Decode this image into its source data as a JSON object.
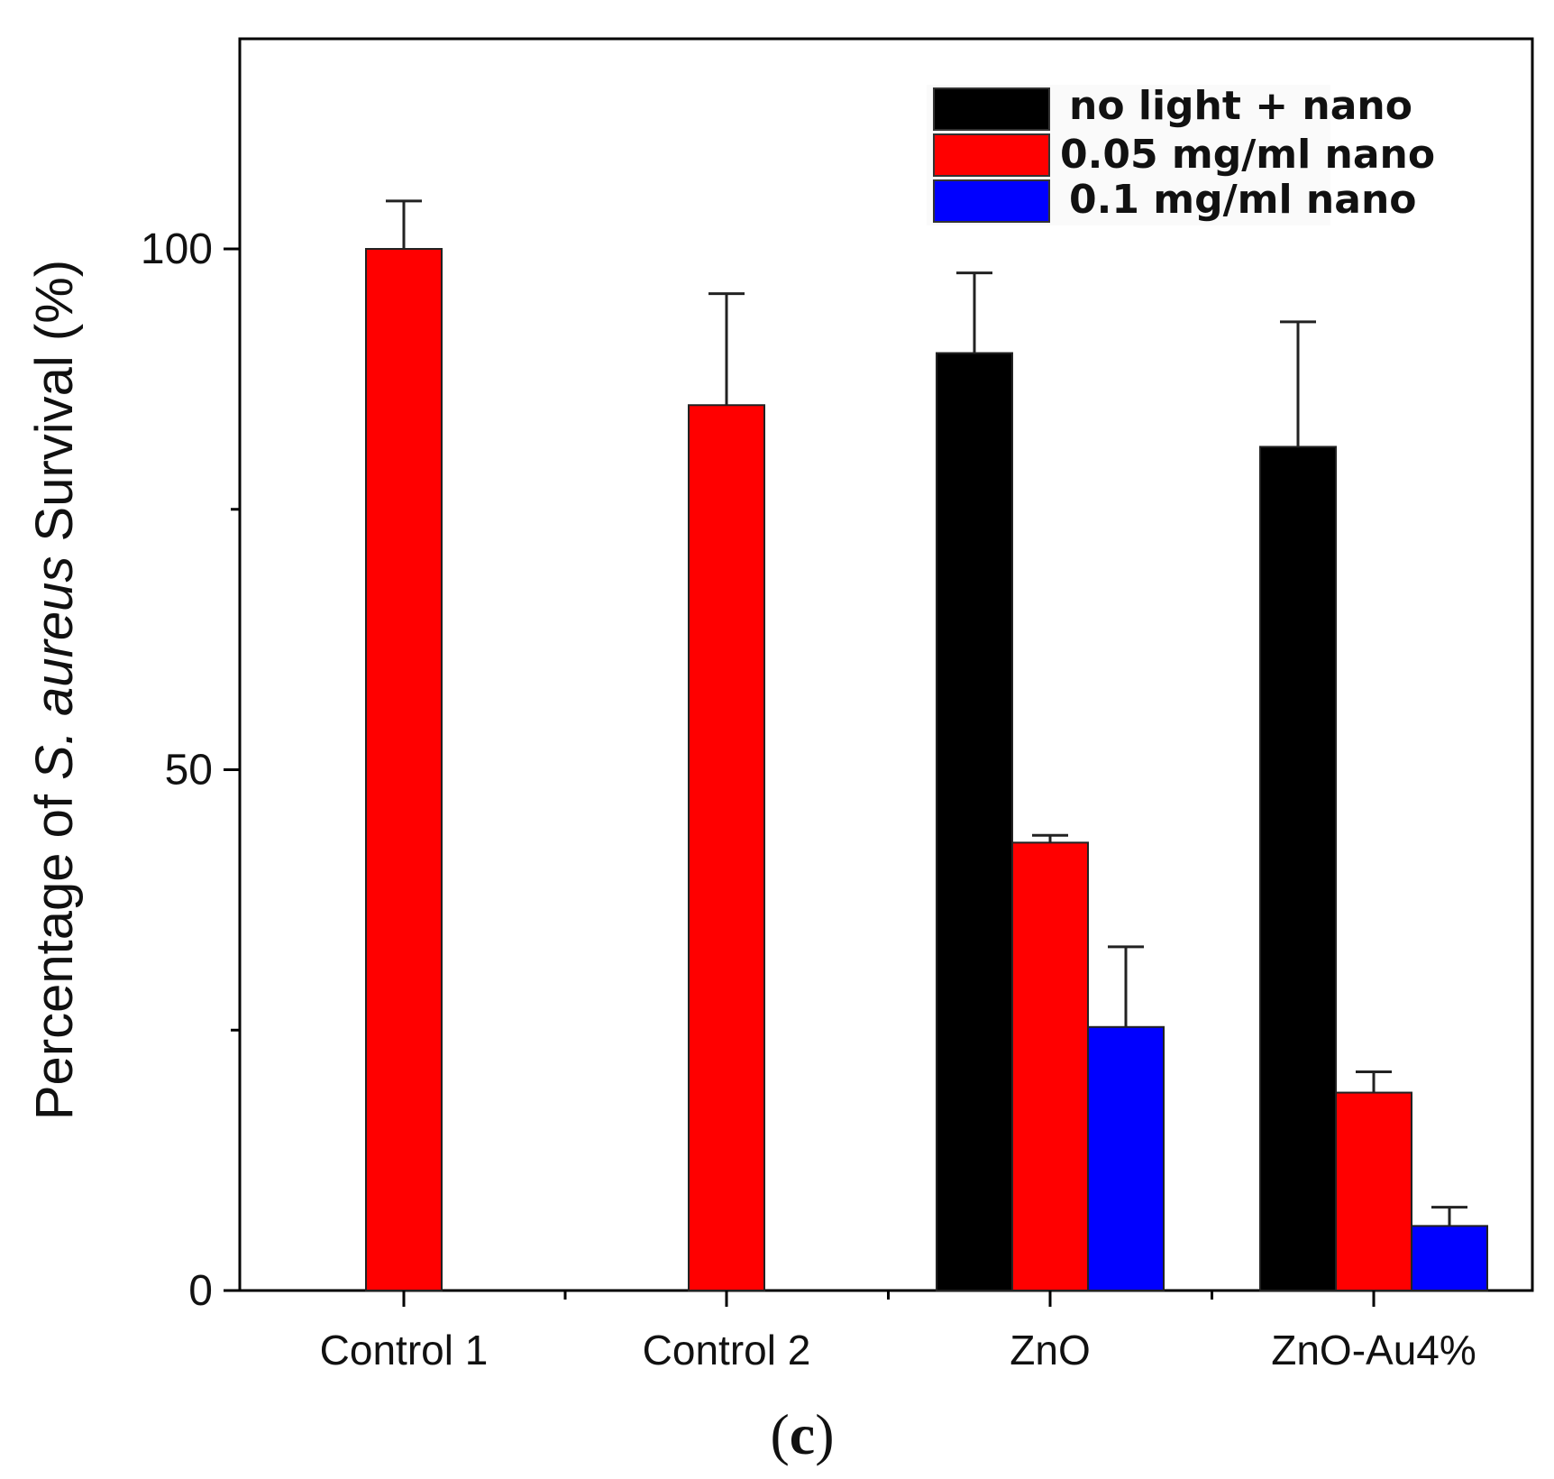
{
  "chart_data": {
    "type": "bar",
    "title": "",
    "caption": {
      "open": "(",
      "letter": "c",
      "close": ")"
    },
    "xlabel": "",
    "ylabel": {
      "prefix": "Percentage of ",
      "italic": "S. aureus",
      "suffix": " Survival (%)"
    },
    "ylim": [
      0,
      120
    ],
    "yticks": [
      0,
      50,
      100
    ],
    "categories": [
      "Control 1",
      "Control 2",
      "ZnO",
      "ZnO-Au4%"
    ],
    "series": [
      {
        "name": "no light + nano",
        "color": "#000000",
        "values": [
          null,
          null,
          90,
          81
        ],
        "errors": [
          null,
          null,
          7.7,
          12
        ]
      },
      {
        "name": "0.05 mg/ml nano",
        "color": "#ff0000",
        "values": [
          100,
          85,
          43,
          19
        ],
        "errors": [
          4.6,
          10.7,
          0.7,
          2
        ]
      },
      {
        "name": "0.1 mg/ml nano",
        "color": "#0000ff",
        "values": [
          null,
          null,
          25.3,
          6.2
        ],
        "errors": [
          null,
          null,
          7.7,
          1.8
        ]
      }
    ],
    "legend_position": "top-right"
  }
}
